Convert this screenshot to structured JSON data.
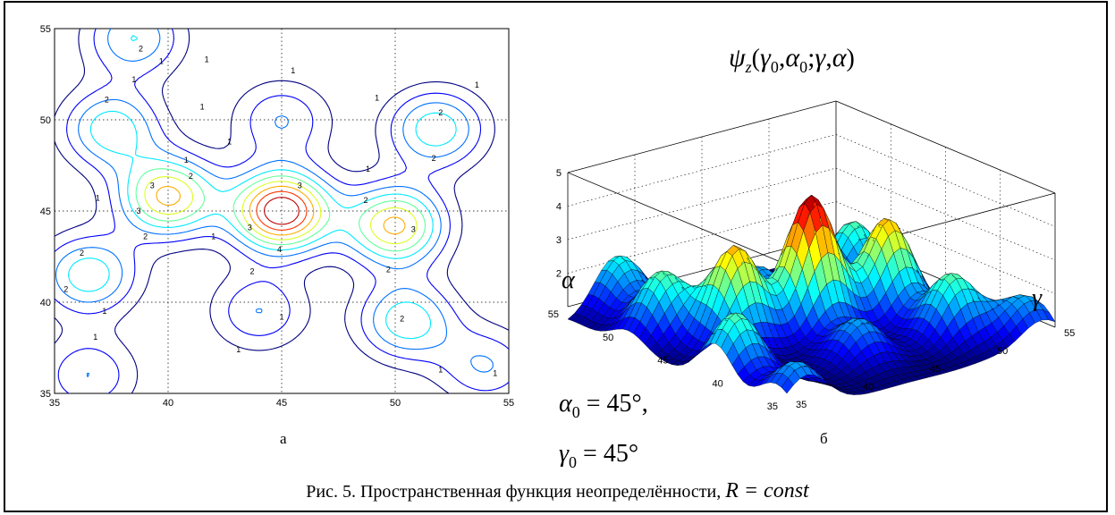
{
  "chart_data": [
    {
      "type": "contour",
      "panel": "а",
      "xlim": [
        35,
        55
      ],
      "ylim": [
        35,
        55
      ],
      "xticks": [
        "35",
        "40",
        "45",
        "50",
        "55"
      ],
      "yticks": [
        "35",
        "40",
        "45",
        "50",
        "55"
      ],
      "grid": true,
      "contour_levels": [
        "1",
        "2",
        "3",
        "4"
      ],
      "peaks": [
        {
          "x": 45,
          "y": 45,
          "value": 4.6
        },
        {
          "x": 40,
          "y": 45.8,
          "value": 3.5
        },
        {
          "x": 50,
          "y": 44.2,
          "value": 3.5
        },
        {
          "x": 37.5,
          "y": 49.5,
          "value": 2.5
        },
        {
          "x": 51.8,
          "y": 49.5,
          "value": 2.5
        },
        {
          "x": 36.5,
          "y": 41.5,
          "value": 2.5
        },
        {
          "x": 50.5,
          "y": 39,
          "value": 2.5
        },
        {
          "x": 45,
          "y": 50,
          "value": 1.8
        },
        {
          "x": 44,
          "y": 39.5,
          "value": 1.8
        },
        {
          "x": 38.5,
          "y": 54.5,
          "value": 2.2
        },
        {
          "x": 36.5,
          "y": 36,
          "value": 1.8
        },
        {
          "x": 54,
          "y": 36.5,
          "value": 1.8
        }
      ]
    },
    {
      "type": "surface",
      "panel": "б",
      "title": "ψz(γ0,α0;γ,α)",
      "zticks": [
        "2",
        "3",
        "4",
        "5"
      ],
      "alpha_ticks": [
        "35",
        "40",
        "45",
        "50",
        "55"
      ],
      "gamma_ticks": [
        "35",
        "40",
        "45",
        "50",
        "55"
      ],
      "xlabel": "γ",
      "ylabel": "α",
      "zlim": [
        1,
        5
      ],
      "colormap": "jet",
      "peak_value": 4.6
    }
  ],
  "labels": {
    "panel_a": "а",
    "panel_b": "б",
    "alpha_axis": "α",
    "gamma_axis": "γ",
    "alpha0_sym": "α",
    "alpha0_sub": "0",
    "alpha0_val": " = 45°,",
    "gamma0_sym": "γ",
    "gamma0_sub": "0",
    "gamma0_val": " = 45°"
  },
  "title": {
    "psi": "ψ",
    "psi_sub": "z",
    "args": "(γ0,α0;γ,α)"
  },
  "caption": {
    "text": "Рис. 5. Пространственная функция неопределённости,",
    "formula": "R = const"
  },
  "colors": {
    "level1": "#00008f",
    "level2": "#00bfff",
    "level3": "#ffcf00",
    "level4": "#df0000"
  }
}
